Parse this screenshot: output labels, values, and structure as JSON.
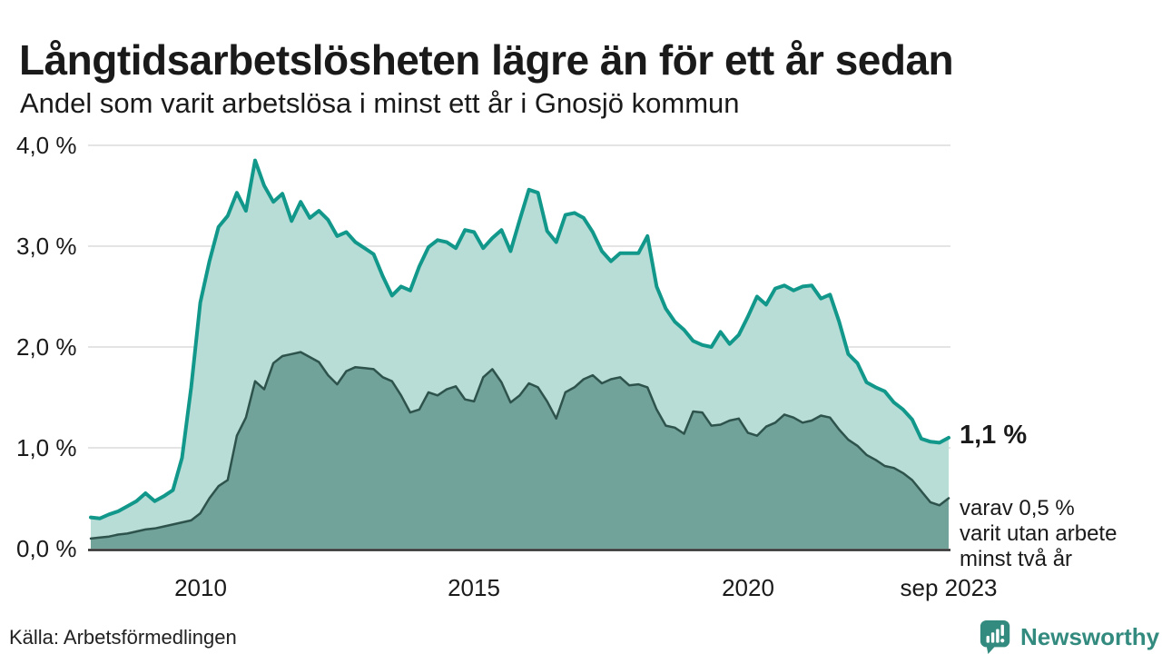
{
  "header": {
    "title": "Långtidsarbetslösheten lägre än för ett år sedan",
    "subtitle": "Andel som varit arbetslösa i minst ett år i Gnosjö kommun"
  },
  "chart_data": {
    "type": "area",
    "title": "Långtidsarbetslösheten lägre än för ett år sedan",
    "subtitle": "Andel som varit arbetslösa i minst ett år i Gnosjö kommun",
    "unit": "%",
    "x_start": "jan 2008",
    "x_end": "sep 2023",
    "x_step_months": 2,
    "ylim": [
      0,
      4
    ],
    "grid_values": [
      1,
      2,
      3,
      4
    ],
    "grid_on": true,
    "legend_position": "none",
    "yticks": [
      {
        "label": "4,0 %",
        "value": 4
      },
      {
        "label": "3,0 %",
        "value": 3
      },
      {
        "label": "2,0 %",
        "value": 2
      },
      {
        "label": "1,0 %",
        "value": 1
      },
      {
        "label": "0,0 %",
        "value": 0
      }
    ],
    "xticks": [
      {
        "label": "2010",
        "index": 12
      },
      {
        "label": "2015",
        "index": 42
      },
      {
        "label": "2020",
        "index": 72
      },
      {
        "label": "sep 2023",
        "index": 94
      }
    ],
    "series": [
      {
        "name": "Arbetslösa minst ett år",
        "color": "#12988b",
        "fill": "#b8dcd6",
        "line_width": 4,
        "end_value": "1,1 %",
        "values": [
          0.31,
          0.3,
          0.34,
          0.37,
          0.42,
          0.47,
          0.55,
          0.47,
          0.52,
          0.58,
          0.9,
          1.6,
          2.44,
          2.85,
          3.19,
          3.3,
          3.53,
          3.35,
          3.85,
          3.6,
          3.44,
          3.52,
          3.25,
          3.44,
          3.28,
          3.35,
          3.26,
          3.1,
          3.14,
          3.04,
          2.98,
          2.92,
          2.7,
          2.51,
          2.6,
          2.56,
          2.8,
          2.99,
          3.06,
          3.04,
          2.98,
          3.16,
          3.14,
          2.98,
          3.08,
          3.16,
          2.95,
          3.26,
          3.56,
          3.53,
          3.15,
          3.04,
          3.31,
          3.33,
          3.28,
          3.14,
          2.95,
          2.85,
          2.93,
          2.93,
          2.93,
          3.1,
          2.6,
          2.38,
          2.25,
          2.17,
          2.06,
          2.02,
          2.0,
          2.15,
          2.03,
          2.12,
          2.3,
          2.5,
          2.42,
          2.58,
          2.61,
          2.56,
          2.6,
          2.61,
          2.48,
          2.52,
          2.25,
          1.93,
          1.84,
          1.65,
          1.6,
          1.56,
          1.45,
          1.38,
          1.28,
          1.09,
          1.06,
          1.05,
          1.1
        ]
      },
      {
        "name": "Arbetslösa minst två år",
        "color": "#2e524c",
        "fill": "#71a39b",
        "line_width": 2.5,
        "end_value": "0,5 %",
        "values": [
          0.1,
          0.11,
          0.12,
          0.14,
          0.15,
          0.17,
          0.19,
          0.2,
          0.22,
          0.24,
          0.26,
          0.28,
          0.35,
          0.5,
          0.62,
          0.68,
          1.12,
          1.3,
          1.66,
          1.58,
          1.84,
          1.91,
          1.93,
          1.95,
          1.9,
          1.85,
          1.72,
          1.63,
          1.76,
          1.8,
          1.79,
          1.78,
          1.7,
          1.66,
          1.52,
          1.35,
          1.38,
          1.55,
          1.52,
          1.58,
          1.61,
          1.48,
          1.46,
          1.7,
          1.78,
          1.65,
          1.45,
          1.52,
          1.64,
          1.6,
          1.46,
          1.29,
          1.55,
          1.6,
          1.68,
          1.72,
          1.64,
          1.68,
          1.7,
          1.62,
          1.63,
          1.6,
          1.38,
          1.22,
          1.2,
          1.14,
          1.36,
          1.35,
          1.22,
          1.23,
          1.27,
          1.29,
          1.15,
          1.12,
          1.21,
          1.25,
          1.33,
          1.3,
          1.25,
          1.27,
          1.32,
          1.3,
          1.18,
          1.08,
          1.02,
          0.93,
          0.88,
          0.82,
          0.8,
          0.75,
          0.68,
          0.57,
          0.46,
          0.43,
          0.5
        ]
      }
    ],
    "annotations": {
      "end_label_total": "1,1 %",
      "end_label_subset_lines": [
        "varav 0,5 %",
        "varit utan arbete",
        "minst två år"
      ]
    },
    "colors": {
      "grid": "#dcdcdc",
      "axis": "#2b2b2b",
      "background": "#ffffff"
    }
  },
  "footer": {
    "source": "Källa: Arbetsförmedlingen",
    "brand": "Newsworthy",
    "brand_color": "#338a7e"
  }
}
